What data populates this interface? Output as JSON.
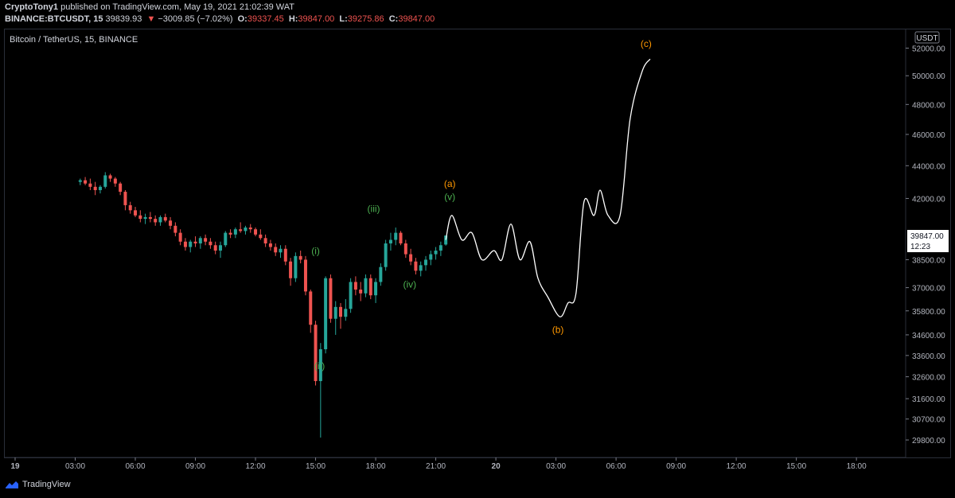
{
  "header": {
    "author": "CryptoTony1",
    "published_text": "published on TradingView.com, May 19, 2021 21:02:39 WAT",
    "ticker": "BINANCE:BTCUSDT, 15",
    "last": "39839.93",
    "change": "−3009.85 (−7.02%)",
    "o_label": "O:",
    "o_value": "39337.45",
    "h_label": "H:",
    "h_value": "39847.00",
    "l_label": "L:",
    "l_value": "39275.86",
    "c_label": "C:",
    "c_value": "39847.00"
  },
  "symbol_line": "Bitcoin / TetherUS, 15, BINANCE",
  "currency_badge": "USDT",
  "price_tag": {
    "price": "39847.00",
    "countdown": "12:23"
  },
  "footer": {
    "brand": "TradingView",
    "icon": "tradingview-logo-icon"
  },
  "colors": {
    "up": "#26a69a",
    "down": "#ef5350",
    "green_label": "#4caf50",
    "orange_label": "#ff9800",
    "path": "#ffffff"
  },
  "chart_data": {
    "type": "candlestick",
    "title": "Bitcoin / TetherUS, 15, BINANCE",
    "ylim": [
      29400,
      52800
    ],
    "y_scale": "log",
    "y_ticks": [
      "52000.00",
      "50000.00",
      "48000.00",
      "46000.00",
      "44000.00",
      "42000.00",
      "38500.00",
      "37000.00",
      "35800.00",
      "34600.00",
      "33600.00",
      "32600.00",
      "31600.00",
      "30700.00",
      "29800.00"
    ],
    "x_ticks": [
      "19",
      "03:00",
      "06:00",
      "09:00",
      "12:00",
      "15:00",
      "18:00",
      "21:00",
      "20",
      "03:00",
      "06:00",
      "09:00",
      "12:00",
      "15:00",
      "18:00"
    ],
    "candles_ohlc": [
      [
        43000,
        43200,
        42800,
        43100
      ],
      [
        43100,
        43300,
        42800,
        42900
      ],
      [
        42900,
        43200,
        42500,
        42700
      ],
      [
        42700,
        43000,
        42200,
        42500
      ],
      [
        42500,
        42800,
        42300,
        42700
      ],
      [
        42700,
        43600,
        42600,
        43400
      ],
      [
        43400,
        43500,
        43000,
        43200
      ],
      [
        43200,
        43300,
        42700,
        42900
      ],
      [
        42900,
        43000,
        42200,
        42400
      ],
      [
        42400,
        42500,
        41300,
        41600
      ],
      [
        41600,
        41800,
        41100,
        41300
      ],
      [
        41300,
        41500,
        40900,
        41000
      ],
      [
        41000,
        41300,
        40600,
        40800
      ],
      [
        40800,
        41100,
        40500,
        40900
      ],
      [
        40900,
        41200,
        40600,
        40800
      ],
      [
        40800,
        41000,
        40400,
        40600
      ],
      [
        40600,
        41000,
        40400,
        40900
      ],
      [
        40900,
        41100,
        40600,
        40700
      ],
      [
        40700,
        40900,
        40200,
        40400
      ],
      [
        40400,
        40600,
        39800,
        40000
      ],
      [
        40000,
        40200,
        39300,
        39500
      ],
      [
        39500,
        39700,
        39000,
        39200
      ],
      [
        39200,
        39600,
        38900,
        39500
      ],
      [
        39500,
        39800,
        39200,
        39400
      ],
      [
        39400,
        39800,
        39100,
        39700
      ],
      [
        39700,
        39900,
        39300,
        39500
      ],
      [
        39500,
        39700,
        39100,
        39300
      ],
      [
        39300,
        39500,
        38800,
        39000
      ],
      [
        39000,
        39500,
        38600,
        39300
      ],
      [
        39300,
        40100,
        39200,
        40000
      ],
      [
        40000,
        40200,
        39700,
        39900
      ],
      [
        39900,
        40300,
        39700,
        40200
      ],
      [
        40200,
        40600,
        40000,
        40100
      ],
      [
        40100,
        40400,
        39900,
        40300
      ],
      [
        40300,
        40500,
        40000,
        40200
      ],
      [
        40200,
        40300,
        39800,
        39900
      ],
      [
        39900,
        40200,
        39600,
        39700
      ],
      [
        39700,
        39900,
        39200,
        39400
      ],
      [
        39400,
        39600,
        39000,
        39200
      ],
      [
        39200,
        39400,
        38700,
        38900
      ],
      [
        38900,
        39300,
        38600,
        39100
      ],
      [
        39100,
        39300,
        38200,
        38400
      ],
      [
        38400,
        38600,
        37100,
        37500
      ],
      [
        37500,
        38900,
        37300,
        38700
      ],
      [
        38700,
        39000,
        38300,
        38500
      ],
      [
        38500,
        38700,
        36600,
        36800
      ],
      [
        36800,
        36900,
        34700,
        35100
      ],
      [
        35100,
        35300,
        32200,
        32400
      ],
      [
        32400,
        34200,
        29900,
        33900
      ],
      [
        33900,
        37600,
        33700,
        37500
      ],
      [
        37500,
        37700,
        35200,
        35400
      ],
      [
        35400,
        36300,
        34600,
        36000
      ],
      [
        36000,
        36200,
        34900,
        35500
      ],
      [
        35500,
        36400,
        35300,
        35900
      ],
      [
        35900,
        37500,
        35700,
        37300
      ],
      [
        37300,
        37600,
        36600,
        36900
      ],
      [
        36900,
        37300,
        36300,
        36700
      ],
      [
        36700,
        37700,
        36500,
        37500
      ],
      [
        37500,
        37700,
        36400,
        36600
      ],
      [
        36600,
        37500,
        36200,
        37300
      ],
      [
        37300,
        38300,
        37100,
        38100
      ],
      [
        38100,
        39600,
        37900,
        39400
      ],
      [
        39400,
        40000,
        39000,
        39600
      ],
      [
        39600,
        40300,
        39300,
        40000
      ],
      [
        40000,
        40100,
        39300,
        39400
      ],
      [
        39400,
        39600,
        38600,
        38800
      ],
      [
        38800,
        39100,
        38200,
        38400
      ],
      [
        38400,
        38600,
        37700,
        37900
      ],
      [
        37900,
        38400,
        37600,
        38200
      ],
      [
        38200,
        38700,
        37900,
        38500
      ],
      [
        38500,
        39000,
        38200,
        38800
      ],
      [
        38800,
        39200,
        38500,
        39000
      ],
      [
        39000,
        39500,
        38700,
        39300
      ],
      [
        39337.45,
        39847,
        39275.86,
        39847
      ]
    ],
    "projection_path": [
      [
        21.5,
        39600
      ],
      [
        21.8,
        41000
      ],
      [
        22.3,
        39600
      ],
      [
        22.8,
        40000
      ],
      [
        23.3,
        38500
      ],
      [
        23.9,
        39000
      ],
      [
        24.3,
        38500
      ],
      [
        24.75,
        40500
      ],
      [
        25.2,
        38500
      ],
      [
        25.7,
        39500
      ],
      [
        26.1,
        37500
      ],
      [
        26.6,
        36500
      ],
      [
        27.2,
        35500
      ],
      [
        27.6,
        36200
      ],
      [
        28.0,
        36700
      ],
      [
        28.4,
        41800
      ],
      [
        28.9,
        41000
      ],
      [
        29.2,
        42500
      ],
      [
        29.6,
        41000
      ],
      [
        30.2,
        41000
      ],
      [
        30.7,
        47000
      ],
      [
        31.3,
        50300
      ],
      [
        31.7,
        51200
      ]
    ],
    "annotations": [
      {
        "text": "(a)",
        "color": "orange",
        "x": 21.7,
        "y": 42700
      },
      {
        "text": "(v)",
        "color": "green",
        "x": 21.7,
        "y": 41900
      },
      {
        "text": "(i)",
        "color": "green",
        "x": 15.0,
        "y": 38800
      },
      {
        "text": "(ii)",
        "color": "green",
        "x": 15.2,
        "y": 32950
      },
      {
        "text": "(iii)",
        "color": "green",
        "x": 17.9,
        "y": 41200
      },
      {
        "text": "(iv)",
        "color": "green",
        "x": 19.7,
        "y": 37000
      },
      {
        "text": "(b)",
        "color": "orange",
        "x": 27.1,
        "y": 34700
      },
      {
        "text": "(c)",
        "color": "orange",
        "x": 31.5,
        "y": 52100
      }
    ]
  }
}
